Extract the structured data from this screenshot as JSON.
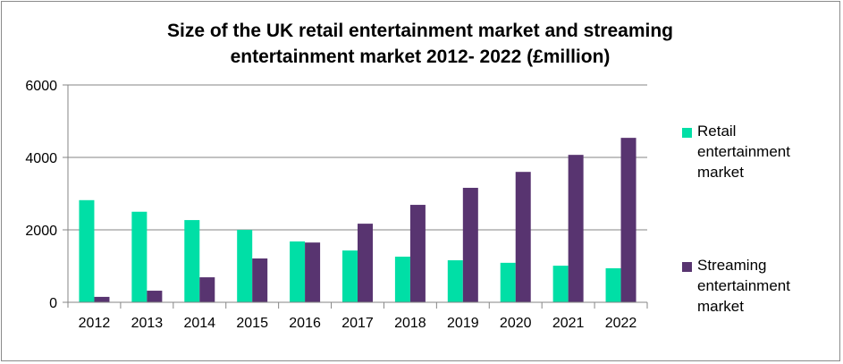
{
  "chart_data": {
    "type": "bar",
    "title": "Size of the UK retail entertainment market and streaming entertainment market 2012- 2022 (£million)",
    "title_lines": [
      "Size of the UK retail entertainment market and streaming",
      "entertainment market 2012- 2022 (£million)"
    ],
    "categories": [
      "2012",
      "2013",
      "2014",
      "2015",
      "2016",
      "2017",
      "2018",
      "2019",
      "2020",
      "2021",
      "2022"
    ],
    "series": [
      {
        "name": "Retail entertainment market",
        "color": "#00DFA6",
        "values": [
          2820,
          2500,
          2270,
          2000,
          1680,
          1430,
          1260,
          1160,
          1090,
          1010,
          940
        ]
      },
      {
        "name": "Streaming entertainment market",
        "color": "#583470",
        "values": [
          150,
          320,
          690,
          1210,
          1650,
          2170,
          2690,
          3160,
          3600,
          4070,
          4540
        ]
      }
    ],
    "xlabel": "",
    "ylabel": "",
    "ylim": [
      0,
      6000
    ],
    "yticks": [
      0,
      2000,
      4000,
      6000
    ],
    "grid": true,
    "legend_position": "right"
  }
}
